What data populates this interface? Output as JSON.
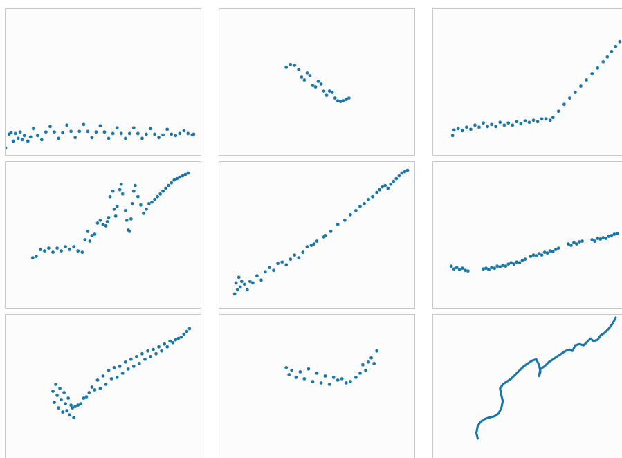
{
  "colors": {
    "series": "#1c76a6",
    "panel_background": "#fcfcfc",
    "panel_border": "#c8c8c8"
  },
  "chart_data": [
    {
      "type": "scatter",
      "axes": "hidden",
      "grid": false,
      "xlim": [
        0,
        280
      ],
      "ylim": [
        0,
        210
      ],
      "x": [
        0,
        5,
        8,
        11,
        14,
        18,
        21,
        24,
        27,
        32,
        36,
        40,
        46,
        52,
        58,
        64,
        70,
        76,
        82,
        88,
        94,
        100,
        106,
        112,
        118,
        124,
        130,
        136,
        142,
        148,
        154,
        160,
        166,
        172,
        178,
        184,
        190,
        196,
        202,
        208,
        214,
        220,
        226,
        232,
        238,
        244,
        250,
        256,
        262,
        268,
        270
      ],
      "y": [
        10,
        30,
        32,
        20,
        31,
        24,
        33,
        22,
        28,
        20,
        26,
        38,
        28,
        22,
        33,
        41,
        33,
        24,
        32,
        43,
        34,
        25,
        34,
        44,
        34,
        25,
        33,
        42,
        33,
        24,
        31,
        39,
        31,
        24,
        31,
        39,
        31,
        24,
        30,
        38,
        30,
        25,
        29,
        37,
        30,
        28,
        31,
        35,
        31,
        29,
        30
      ]
    },
    {
      "type": "scatter",
      "axes": "hidden",
      "grid": false,
      "xlim": [
        0,
        280
      ],
      "ylim": [
        0,
        210
      ],
      "x": [
        96,
        102,
        108,
        114,
        118,
        122,
        126,
        130,
        134,
        138,
        142,
        146,
        150,
        154,
        158,
        162,
        166,
        170,
        174,
        178,
        182,
        186
      ],
      "y": [
        126,
        130,
        129,
        123,
        112,
        108,
        118,
        114,
        100,
        98,
        106,
        102,
        92,
        86,
        92,
        90,
        82,
        78,
        77,
        78,
        80,
        82
      ]
    },
    {
      "type": "scatter",
      "axes": "hidden",
      "grid": false,
      "xlim": [
        0,
        280
      ],
      "ylim": [
        0,
        210
      ],
      "x": [
        28,
        30,
        36,
        42,
        48,
        54,
        60,
        66,
        72,
        78,
        84,
        90,
        96,
        102,
        108,
        114,
        120,
        126,
        132,
        138,
        144,
        150,
        156,
        162,
        168,
        172,
        180,
        188,
        196,
        204,
        212,
        220,
        228,
        236,
        244,
        250,
        256,
        262,
        268
      ],
      "y": [
        28,
        36,
        38,
        35,
        40,
        37,
        43,
        40,
        46,
        41,
        44,
        41,
        47,
        43,
        46,
        43,
        48,
        45,
        49,
        47,
        50,
        48,
        52,
        52,
        50,
        54,
        63,
        73,
        82,
        90,
        99,
        108,
        117,
        125,
        134,
        141,
        149,
        156,
        163
      ]
    },
    {
      "type": "scatter",
      "axes": "hidden",
      "grid": false,
      "xlim": [
        0,
        280
      ],
      "ylim": [
        0,
        210
      ],
      "x": [
        39,
        44,
        50,
        56,
        62,
        68,
        74,
        80,
        86,
        92,
        98,
        104,
        110,
        114,
        118,
        121,
        124,
        128,
        132,
        136,
        140,
        144,
        146,
        148,
        150,
        154,
        156,
        158,
        160,
        164,
        166,
        168,
        172,
        174,
        176,
        178,
        180,
        182,
        184,
        186,
        190,
        194,
        198,
        202,
        206,
        210,
        214,
        218,
        222,
        226,
        230,
        234,
        238,
        242,
        246,
        250,
        254,
        258,
        262
      ],
      "y": [
        72,
        74,
        84,
        82,
        86,
        80,
        86,
        82,
        88,
        84,
        88,
        82,
        80,
        98,
        110,
        96,
        104,
        106,
        122,
        126,
        120,
        118,
        124,
        130,
        160,
        168,
        142,
        132,
        146,
        170,
        178,
        164,
        140,
        126,
        112,
        110,
        128,
        150,
        168,
        176,
        160,
        148,
        136,
        142,
        150,
        152,
        156,
        160,
        164,
        168,
        172,
        176,
        180,
        184,
        186,
        188,
        190,
        192,
        194
      ]
    },
    {
      "type": "scatter",
      "axes": "hidden",
      "grid": false,
      "xlim": [
        0,
        280
      ],
      "ylim": [
        0,
        210
      ],
      "x": [
        22,
        24,
        26,
        28,
        30,
        32,
        36,
        40,
        44,
        48,
        54,
        60,
        66,
        72,
        78,
        84,
        90,
        96,
        102,
        108,
        114,
        120,
        126,
        132,
        136,
        140,
        150,
        152,
        160,
        170,
        180,
        188,
        196,
        202,
        208,
        214,
        220,
        226,
        230,
        234,
        238,
        242,
        246,
        250,
        254,
        258,
        262,
        266,
        270
      ],
      "y": [
        20,
        36,
        26,
        44,
        30,
        38,
        34,
        26,
        38,
        36,
        46,
        40,
        52,
        58,
        54,
        64,
        66,
        62,
        70,
        76,
        72,
        80,
        88,
        90,
        92,
        96,
        102,
        104,
        110,
        120,
        126,
        134,
        140,
        146,
        150,
        156,
        160,
        166,
        170,
        174,
        176,
        172,
        178,
        182,
        186,
        190,
        194,
        196,
        198
      ]
    },
    {
      "type": "scatter",
      "axes": "hidden",
      "grid": false,
      "xlim": [
        0,
        280
      ],
      "ylim": [
        0,
        210
      ],
      "x": [
        26,
        30,
        34,
        38,
        42,
        46,
        50,
        72,
        76,
        80,
        84,
        88,
        92,
        96,
        100,
        104,
        108,
        112,
        116,
        120,
        124,
        128,
        132,
        140,
        144,
        148,
        152,
        156,
        160,
        164,
        168,
        172,
        176,
        180,
        194,
        198,
        202,
        206,
        210,
        214,
        228,
        232,
        236,
        240,
        244,
        248,
        252,
        256,
        260,
        264
      ],
      "y": [
        60,
        56,
        58,
        55,
        57,
        54,
        53,
        56,
        57,
        55,
        58,
        57,
        60,
        59,
        61,
        60,
        63,
        65,
        63,
        66,
        65,
        68,
        70,
        74,
        76,
        75,
        78,
        76,
        80,
        79,
        82,
        81,
        84,
        86,
        92,
        90,
        94,
        92,
        95,
        96,
        98,
        96,
        100,
        99,
        101,
        100,
        103,
        104,
        106,
        107
      ]
    },
    {
      "type": "scatter",
      "axes": "hidden",
      "grid": false,
      "xlim": [
        0,
        280
      ],
      "ylim": [
        0,
        210
      ],
      "x": [
        68,
        70,
        72,
        74,
        76,
        78,
        80,
        82,
        84,
        86,
        88,
        90,
        92,
        94,
        96,
        98,
        100,
        104,
        108,
        112,
        116,
        120,
        124,
        128,
        132,
        136,
        140,
        144,
        148,
        152,
        156,
        160,
        164,
        168,
        172,
        176,
        180,
        184,
        188,
        192,
        196,
        200,
        204,
        208,
        212,
        216,
        220,
        224,
        228,
        232,
        236,
        240,
        244,
        248,
        252,
        256,
        260,
        264
      ],
      "y": [
        100,
        84,
        110,
        94,
        76,
        104,
        88,
        70,
        98,
        82,
        72,
        90,
        66,
        80,
        76,
        62,
        78,
        80,
        82,
        90,
        92,
        98,
        106,
        102,
        116,
        104,
        122,
        110,
        130,
        118,
        134,
        120,
        136,
        126,
        142,
        132,
        146,
        136,
        150,
        140,
        154,
        146,
        158,
        150,
        160,
        154,
        164,
        158,
        168,
        164,
        172,
        170,
        174,
        176,
        178,
        182,
        186,
        190
      ]
    },
    {
      "type": "scatter",
      "axes": "hidden",
      "grid": false,
      "xlim": [
        0,
        280
      ],
      "ylim": [
        0,
        210
      ],
      "x": [
        96,
        100,
        104,
        110,
        116,
        122,
        128,
        134,
        140,
        146,
        152,
        158,
        164,
        170,
        176,
        182,
        188,
        196,
        202,
        206,
        210,
        214,
        218,
        222,
        226
      ],
      "y": [
        134,
        124,
        130,
        120,
        128,
        118,
        132,
        114,
        126,
        112,
        122,
        110,
        120,
        116,
        118,
        112,
        114,
        120,
        126,
        138,
        130,
        142,
        148,
        140,
        158
      ]
    },
    {
      "type": "line",
      "axes": "hidden",
      "grid": false,
      "xlim": [
        0,
        280
      ],
      "ylim": [
        0,
        210
      ],
      "x": [
        64,
        62,
        64,
        68,
        74,
        80,
        88,
        94,
        98,
        100,
        98,
        96,
        100,
        106,
        112,
        118,
        124,
        130,
        136,
        142,
        148,
        152,
        154,
        152,
        154,
        160,
        166,
        172,
        178,
        184,
        190,
        196,
        200,
        204,
        210,
        216,
        222,
        226,
        230,
        236,
        240,
        246,
        252,
        258,
        262
      ],
      "y": [
        32,
        40,
        50,
        56,
        60,
        62,
        64,
        68,
        76,
        86,
        94,
        104,
        110,
        114,
        118,
        124,
        130,
        136,
        140,
        144,
        146,
        138,
        128,
        122,
        132,
        136,
        142,
        146,
        150,
        154,
        158,
        160,
        158,
        166,
        168,
        166,
        172,
        176,
        172,
        174,
        180,
        184,
        190,
        198,
        206
      ]
    }
  ]
}
